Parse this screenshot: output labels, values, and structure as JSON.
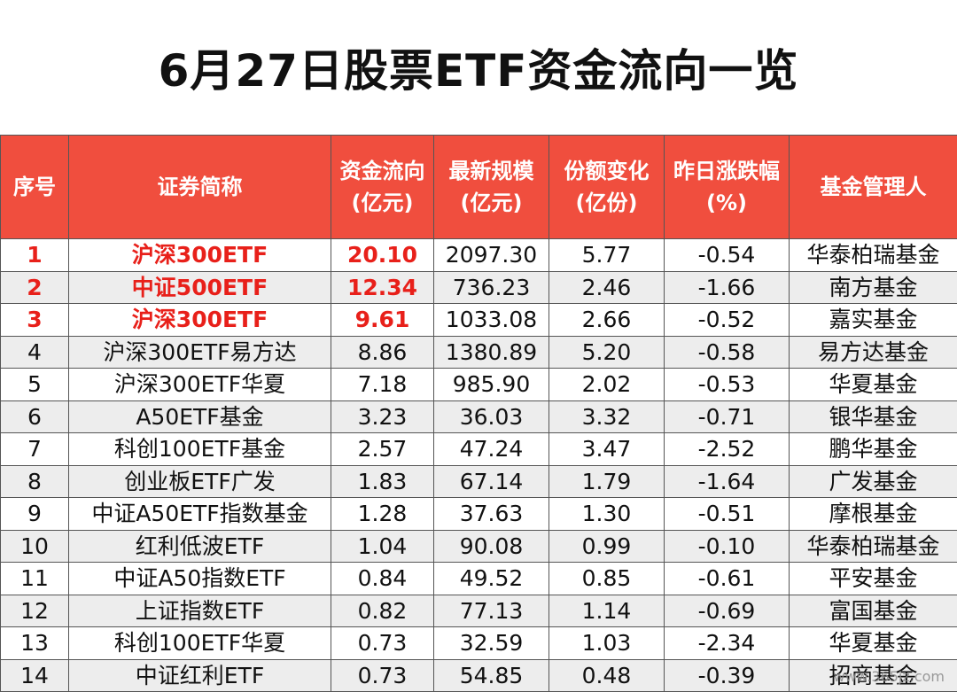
{
  "title": "6月27日股票ETF资金流向一览",
  "headers": {
    "rank": "序号",
    "name": "证券简称",
    "flow_l1": "资金流向",
    "flow_l2": "(亿元)",
    "size_l1": "最新规模",
    "size_l2": "(亿元)",
    "share_l1": "份额变化",
    "share_l2": "(亿份)",
    "change_l1": "昨日涨跌幅",
    "change_l2": "(%)",
    "manager": "基金管理人"
  },
  "rows": [
    {
      "rank": "1",
      "name": "沪深300ETF",
      "flow": "20.10",
      "size": "2097.30",
      "share": "5.77",
      "change": "-0.54",
      "manager": "华泰柏瑞基金",
      "highlight": true
    },
    {
      "rank": "2",
      "name": "中证500ETF",
      "flow": "12.34",
      "size": "736.23",
      "share": "2.46",
      "change": "-1.66",
      "manager": "南方基金",
      "highlight": true
    },
    {
      "rank": "3",
      "name": "沪深300ETF",
      "flow": "9.61",
      "size": "1033.08",
      "share": "2.66",
      "change": "-0.52",
      "manager": "嘉实基金",
      "highlight": true
    },
    {
      "rank": "4",
      "name": "沪深300ETF易方达",
      "flow": "8.86",
      "size": "1380.89",
      "share": "5.20",
      "change": "-0.58",
      "manager": "易方达基金",
      "highlight": false
    },
    {
      "rank": "5",
      "name": "沪深300ETF华夏",
      "flow": "7.18",
      "size": "985.90",
      "share": "2.02",
      "change": "-0.53",
      "manager": "华夏基金",
      "highlight": false
    },
    {
      "rank": "6",
      "name": "A50ETF基金",
      "flow": "3.23",
      "size": "36.03",
      "share": "3.32",
      "change": "-0.71",
      "manager": "银华基金",
      "highlight": false
    },
    {
      "rank": "7",
      "name": "科创100ETF基金",
      "flow": "2.57",
      "size": "47.24",
      "share": "3.47",
      "change": "-2.52",
      "manager": "鹏华基金",
      "highlight": false
    },
    {
      "rank": "8",
      "name": "创业板ETF广发",
      "flow": "1.83",
      "size": "67.14",
      "share": "1.79",
      "change": "-1.64",
      "manager": "广发基金",
      "highlight": false
    },
    {
      "rank": "9",
      "name": "中证A50ETF指数基金",
      "flow": "1.28",
      "size": "37.63",
      "share": "1.30",
      "change": "-0.51",
      "manager": "摩根基金",
      "highlight": false
    },
    {
      "rank": "10",
      "name": "红利低波ETF",
      "flow": "1.04",
      "size": "90.08",
      "share": "0.99",
      "change": "-0.10",
      "manager": "华泰柏瑞基金",
      "highlight": false
    },
    {
      "rank": "11",
      "name": "中证A50指数ETF",
      "flow": "0.84",
      "size": "49.52",
      "share": "0.85",
      "change": "-0.61",
      "manager": "平安基金",
      "highlight": false
    },
    {
      "rank": "12",
      "name": "上证指数ETF",
      "flow": "0.82",
      "size": "77.13",
      "share": "1.14",
      "change": "-0.69",
      "manager": "富国基金",
      "highlight": false
    },
    {
      "rank": "13",
      "name": "科创100ETF华夏",
      "flow": "0.73",
      "size": "32.59",
      "share": "1.03",
      "change": "-2.34",
      "manager": "华夏基金",
      "highlight": false
    },
    {
      "rank": "14",
      "name": "中证红利ETF",
      "flow": "0.73",
      "size": "54.85",
      "share": "0.48",
      "change": "-0.39",
      "manager": "招商基金",
      "highlight": false
    }
  ],
  "watermark": "www.365jz.com",
  "colors": {
    "header_bg": "#f04e3e",
    "highlight_text": "#e8201a",
    "stripe": "#ededed"
  }
}
